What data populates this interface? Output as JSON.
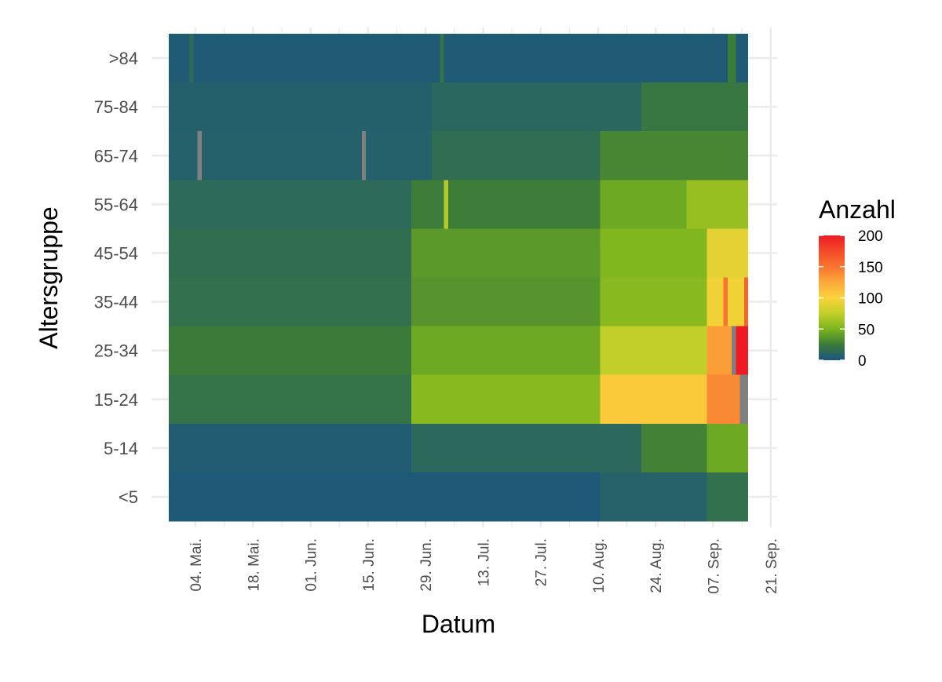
{
  "chart_data": {
    "type": "heatmap",
    "title": "",
    "xlabel": "Datum",
    "ylabel": "Altersgruppe",
    "x_start": "2020-04-28",
    "x_end": "2020-09-15",
    "x_range": [
      "2020-04-28",
      "2020-09-21"
    ],
    "x_ticks": [
      "04. Mai.",
      "18. Mai.",
      "01. Jun.",
      "15. Jun.",
      "29. Jun.",
      "13. Jul.",
      "27. Jul.",
      "10. Aug.",
      "24. Aug.",
      "07. Sep.",
      "21. Sep."
    ],
    "x_tick_dates": [
      "2020-05-04",
      "2020-05-18",
      "2020-06-01",
      "2020-06-15",
      "2020-06-29",
      "2020-07-13",
      "2020-07-27",
      "2020-08-10",
      "2020-08-24",
      "2020-09-07",
      "2020-09-21"
    ],
    "age_groups": [
      ">84",
      "75-84",
      "65-74",
      "55-64",
      "45-54",
      "35-44",
      "25-34",
      "15-24",
      "5-14",
      "<5"
    ],
    "segments_note": "start and end are inclusive dates; value is Anzahl (cases per day)",
    "segments": {
      ">84": [
        {
          "start": "2020-04-28",
          "end": "2020-09-15",
          "value": 4
        },
        {
          "start": "2020-05-03",
          "end": "2020-05-03",
          "value": 15
        },
        {
          "start": "2020-07-03",
          "end": "2020-07-03",
          "value": 20
        },
        {
          "start": "2020-09-11",
          "end": "2020-09-12",
          "value": 25
        }
      ],
      "75-84": [
        {
          "start": "2020-04-28",
          "end": "2020-06-30",
          "value": 7
        },
        {
          "start": "2020-07-01",
          "end": "2020-08-20",
          "value": 12
        },
        {
          "start": "2020-08-21",
          "end": "2020-09-15",
          "value": 22
        }
      ],
      "65-74": [
        {
          "start": "2020-04-28",
          "end": "2020-06-30",
          "value": 8
        },
        {
          "start": "2020-07-01",
          "end": "2020-08-10",
          "value": 16
        },
        {
          "start": "2020-08-11",
          "end": "2020-09-15",
          "value": 30
        }
      ],
      "55-64": [
        {
          "start": "2020-04-28",
          "end": "2020-06-25",
          "value": 14
        },
        {
          "start": "2020-06-26",
          "end": "2020-08-10",
          "value": 26
        },
        {
          "start": "2020-08-11",
          "end": "2020-08-31",
          "value": 45
        },
        {
          "start": "2020-09-01",
          "end": "2020-09-15",
          "value": 60
        },
        {
          "start": "2020-07-04",
          "end": "2020-07-04",
          "value": 70
        }
      ],
      "45-54": [
        {
          "start": "2020-04-28",
          "end": "2020-06-25",
          "value": 17
        },
        {
          "start": "2020-06-26",
          "end": "2020-08-10",
          "value": 38
        },
        {
          "start": "2020-08-11",
          "end": "2020-09-05",
          "value": 52
        },
        {
          "start": "2020-09-06",
          "end": "2020-09-15",
          "value": 90
        }
      ],
      "35-44": [
        {
          "start": "2020-04-28",
          "end": "2020-06-25",
          "value": 18
        },
        {
          "start": "2020-06-26",
          "end": "2020-08-10",
          "value": 36
        },
        {
          "start": "2020-08-11",
          "end": "2020-09-05",
          "value": 55
        },
        {
          "start": "2020-09-06",
          "end": "2020-09-15",
          "value": 95
        },
        {
          "start": "2020-09-10",
          "end": "2020-09-10",
          "value": 150
        },
        {
          "start": "2020-09-15",
          "end": "2020-09-15",
          "value": 160
        }
      ],
      "25-34": [
        {
          "start": "2020-04-28",
          "end": "2020-06-25",
          "value": 25
        },
        {
          "start": "2020-06-26",
          "end": "2020-08-10",
          "value": 45
        },
        {
          "start": "2020-08-11",
          "end": "2020-09-05",
          "value": 75
        },
        {
          "start": "2020-09-06",
          "end": "2020-09-15",
          "value": 130
        },
        {
          "start": "2020-09-13",
          "end": "2020-09-15",
          "value": 200
        }
      ],
      "15-24": [
        {
          "start": "2020-04-28",
          "end": "2020-06-25",
          "value": 20
        },
        {
          "start": "2020-06-26",
          "end": "2020-08-10",
          "value": 55
        },
        {
          "start": "2020-08-11",
          "end": "2020-09-05",
          "value": 105
        },
        {
          "start": "2020-09-06",
          "end": "2020-09-15",
          "value": 140
        }
      ],
      "5-14": [
        {
          "start": "2020-04-28",
          "end": "2020-06-25",
          "value": 5
        },
        {
          "start": "2020-06-26",
          "end": "2020-08-20",
          "value": 13
        },
        {
          "start": "2020-08-21",
          "end": "2020-09-05",
          "value": 28
        },
        {
          "start": "2020-09-06",
          "end": "2020-09-15",
          "value": 45
        }
      ],
      "<5": [
        {
          "start": "2020-04-28",
          "end": "2020-08-10",
          "value": 3
        },
        {
          "start": "2020-08-11",
          "end": "2020-09-05",
          "value": 9
        },
        {
          "start": "2020-09-06",
          "end": "2020-09-15",
          "value": 18
        }
      ]
    },
    "missing_cells": [
      {
        "group": "65-74",
        "date": "2020-05-05"
      },
      {
        "group": "65-74",
        "date": "2020-06-14"
      },
      {
        "group": "25-34",
        "date": "2020-09-12"
      },
      {
        "group": "15-24",
        "date": "2020-09-14"
      },
      {
        "group": "15-24",
        "date": "2020-09-15"
      }
    ],
    "missing_color": "#808080",
    "legend": {
      "title": "Anzahl",
      "labels": [
        "200",
        "150",
        "100",
        "50",
        "0"
      ],
      "values": [
        200,
        150,
        100,
        50,
        0
      ],
      "range": [
        0,
        200
      ],
      "position": "right"
    },
    "color_scale": [
      {
        "value": 0,
        "color": "#1a5580"
      },
      {
        "value": 25,
        "color": "#3c7a3a"
      },
      {
        "value": 50,
        "color": "#7ab51d"
      },
      {
        "value": 75,
        "color": "#c2cf2a"
      },
      {
        "value": 100,
        "color": "#fbd33a"
      },
      {
        "value": 125,
        "color": "#fca83a"
      },
      {
        "value": 150,
        "color": "#f9752f"
      },
      {
        "value": 175,
        "color": "#f44a28"
      },
      {
        "value": 200,
        "color": "#ee1b24"
      }
    ],
    "grid": true,
    "grid_color": "#ebebeb"
  }
}
